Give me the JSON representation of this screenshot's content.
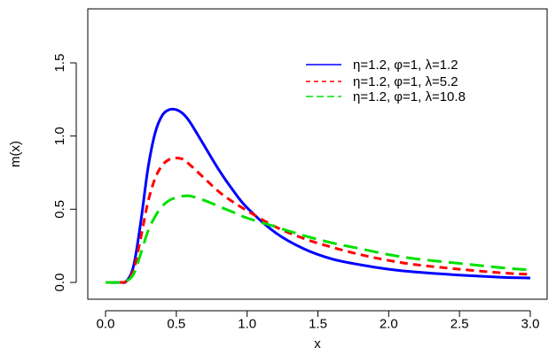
{
  "chart_data": {
    "type": "line",
    "title": "",
    "xlabel": "x",
    "ylabel": "m(x)",
    "xlim": [
      0,
      3.0
    ],
    "ylim": [
      0,
      1.8
    ],
    "xticks": [
      0.0,
      0.5,
      1.0,
      1.5,
      2.0,
      2.5,
      3.0
    ],
    "xtick_labels": [
      "0.0",
      "0.5",
      "1.0",
      "1.5",
      "2.0",
      "2.5",
      "3.0"
    ],
    "yticks": [
      0.0,
      0.5,
      1.0,
      1.5
    ],
    "ytick_labels": [
      "0.0",
      "0.5",
      "1.0",
      "1.5"
    ],
    "grid": false,
    "legend_position": "top-right",
    "series": [
      {
        "name": "η=1.2, φ=1, λ=1.2",
        "color": "#0000ff",
        "dash": "solid",
        "x": [
          0.0,
          0.1,
          0.15,
          0.2,
          0.25,
          0.3,
          0.35,
          0.4,
          0.45,
          0.5,
          0.55,
          0.6,
          0.7,
          0.8,
          0.9,
          1.0,
          1.2,
          1.4,
          1.6,
          1.8,
          2.0,
          2.2,
          2.5,
          2.8,
          3.0
        ],
        "y": [
          0.0,
          0.0,
          0.01,
          0.12,
          0.42,
          0.78,
          1.02,
          1.14,
          1.18,
          1.18,
          1.15,
          1.09,
          0.93,
          0.77,
          0.63,
          0.51,
          0.34,
          0.23,
          0.16,
          0.12,
          0.09,
          0.07,
          0.05,
          0.035,
          0.03
        ]
      },
      {
        "name": "η=1.2, φ=1, λ=5.2",
        "color": "#ff0000",
        "dash": "short",
        "x": [
          0.0,
          0.1,
          0.15,
          0.2,
          0.25,
          0.3,
          0.35,
          0.4,
          0.45,
          0.5,
          0.55,
          0.6,
          0.7,
          0.8,
          0.9,
          1.0,
          1.2,
          1.4,
          1.6,
          1.8,
          2.0,
          2.2,
          2.5,
          2.8,
          3.0
        ],
        "y": [
          0.0,
          0.0,
          0.01,
          0.09,
          0.31,
          0.55,
          0.71,
          0.8,
          0.84,
          0.85,
          0.84,
          0.8,
          0.71,
          0.62,
          0.55,
          0.49,
          0.38,
          0.3,
          0.24,
          0.19,
          0.15,
          0.12,
          0.09,
          0.065,
          0.055
        ]
      },
      {
        "name": "η=1.2, φ=1, λ=10.8",
        "color": "#00e000",
        "dash": "long",
        "x": [
          0.0,
          0.1,
          0.15,
          0.2,
          0.25,
          0.3,
          0.35,
          0.4,
          0.45,
          0.5,
          0.55,
          0.6,
          0.7,
          0.8,
          0.9,
          1.0,
          1.2,
          1.4,
          1.6,
          1.8,
          2.0,
          2.2,
          2.5,
          2.8,
          3.0
        ],
        "y": [
          0.0,
          0.0,
          0.01,
          0.06,
          0.2,
          0.35,
          0.45,
          0.52,
          0.56,
          0.58,
          0.59,
          0.59,
          0.56,
          0.52,
          0.48,
          0.44,
          0.38,
          0.32,
          0.27,
          0.23,
          0.19,
          0.16,
          0.13,
          0.1,
          0.085
        ]
      }
    ]
  }
}
